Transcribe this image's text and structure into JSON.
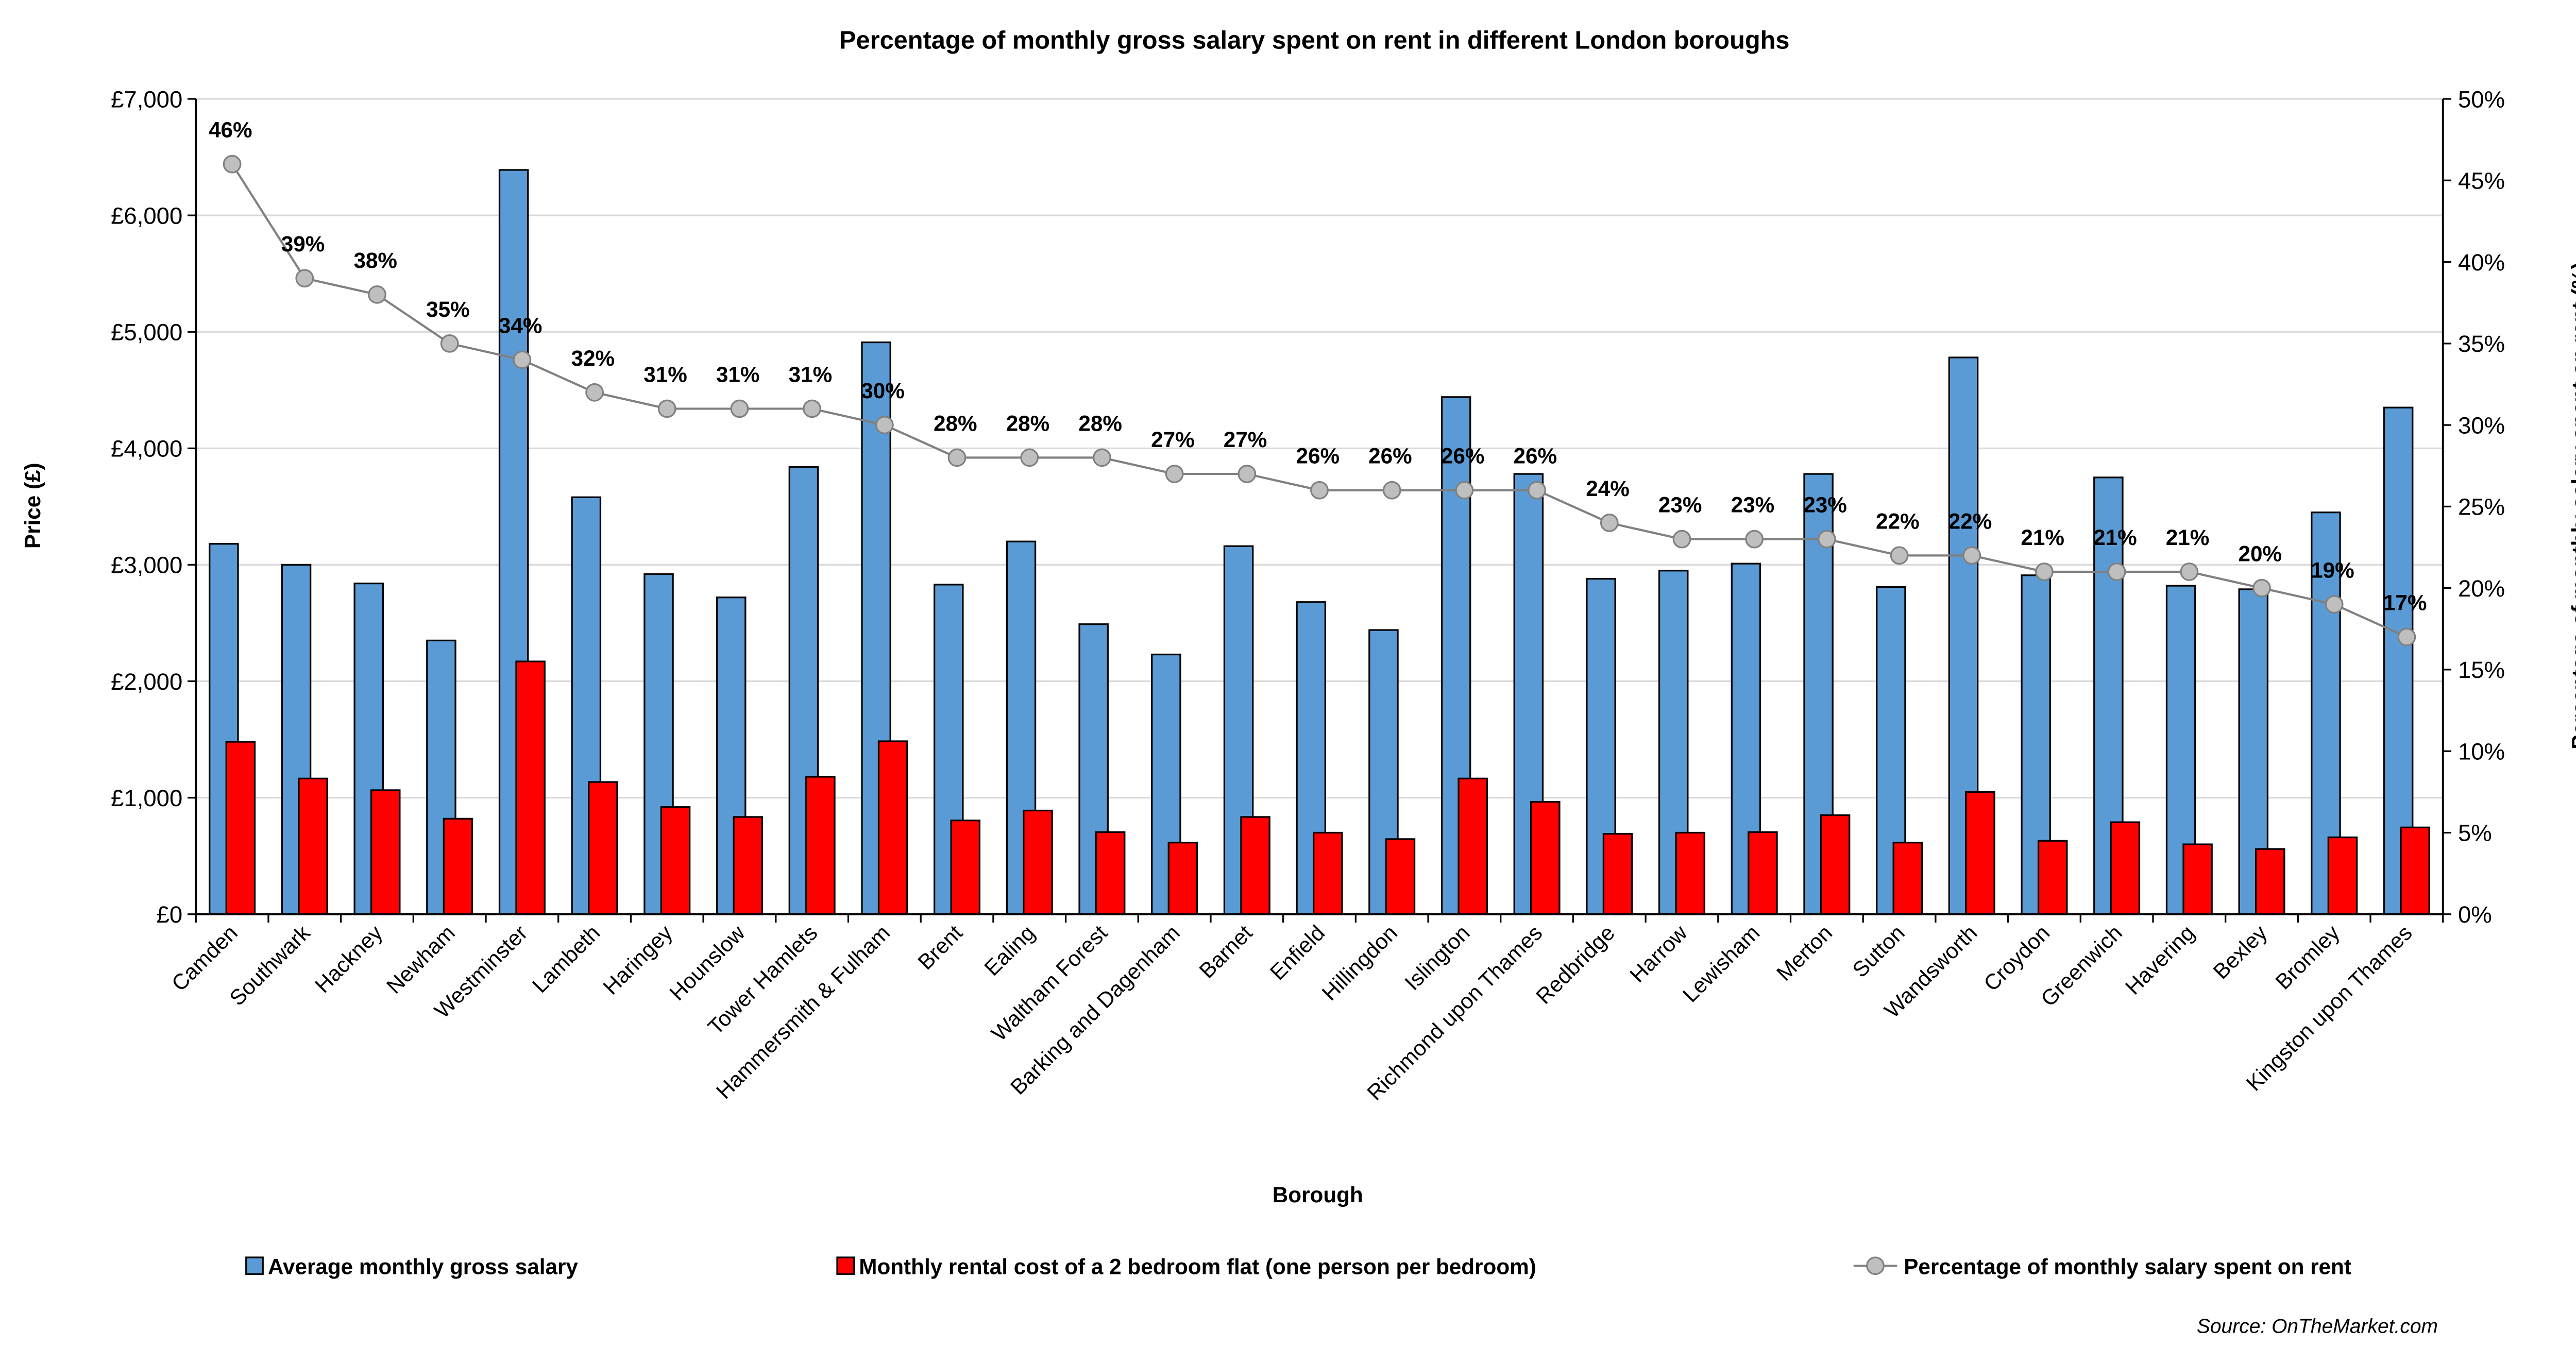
{
  "chart_data": {
    "type": "bar",
    "title": "Percentage of monthly gross salary spent on rent in different London boroughs",
    "xlabel": "Borough",
    "ylabel": "Price (£)",
    "y2label": "Percentage of monthly salary spent on rent (%)",
    "ylim": [
      0,
      7000
    ],
    "y2lim": [
      0,
      50
    ],
    "yticks": [
      "£0",
      "£1,000",
      "£2,000",
      "£3,000",
      "£4,000",
      "£5,000",
      "£6,000",
      "£7,000"
    ],
    "y2ticks": [
      "0%",
      "5%",
      "10%",
      "15%",
      "20%",
      "25%",
      "30%",
      "35%",
      "40%",
      "45%",
      "50%"
    ],
    "grid": true,
    "legend_position": "bottom",
    "source": "Source: OnTheMarket.com",
    "categories": [
      "Camden",
      "Southwark",
      "Hackney",
      "Newham",
      "Westminster",
      "Lambeth",
      "Haringey",
      "Hounslow",
      "Tower Hamlets",
      "Hammersmith & Fulham",
      "Brent",
      "Ealing",
      "Waltham Forest",
      "Barking and Dagenham",
      "Barnet",
      "Enfield",
      "Hillingdon",
      "Islington",
      "Richmond upon Thames",
      "Redbridge",
      "Harrow",
      "Lewisham",
      "Merton",
      "Sutton",
      "Wandsworth",
      "Croydon",
      "Greenwich",
      "Havering",
      "Bexley",
      "Bromley",
      "Kingston upon Thames"
    ],
    "series": [
      {
        "name": "Average monthly gross salary",
        "type": "bar",
        "axis": "left",
        "color": "#5b9bd5",
        "values": [
          3180,
          3000,
          2840,
          2350,
          6390,
          3580,
          2920,
          2720,
          3840,
          4910,
          2830,
          3200,
          2490,
          2230,
          3160,
          2680,
          2440,
          4440,
          3780,
          2880,
          2950,
          3010,
          3780,
          2810,
          4780,
          2910,
          3750,
          2820,
          2790,
          3450,
          4350
        ]
      },
      {
        "name": "Monthly rental cost of a 2 bedroom flat (one person per bedroom)",
        "type": "bar",
        "axis": "left",
        "color": "#ff0000",
        "values": [
          1480,
          1165,
          1065,
          820,
          2170,
          1135,
          920,
          835,
          1180,
          1485,
          805,
          890,
          705,
          615,
          835,
          700,
          645,
          1165,
          965,
          690,
          700,
          705,
          850,
          615,
          1050,
          630,
          790,
          600,
          560,
          660,
          745
        ]
      },
      {
        "name": "Percentage of monthly salary spent on rent",
        "type": "line",
        "axis": "right",
        "color": "#808080",
        "marker_color": "#bfbfbf",
        "values": [
          46,
          39,
          38,
          35,
          34,
          32,
          31,
          31,
          31,
          30,
          28,
          28,
          28,
          27,
          27,
          26,
          26,
          26,
          26,
          24,
          23,
          23,
          23,
          22,
          22,
          21,
          21,
          21,
          20,
          19,
          17
        ],
        "labels": [
          "46%",
          "39%",
          "38%",
          "35%",
          "34%",
          "32%",
          "31%",
          "31%",
          "31%",
          "30%",
          "28%",
          "28%",
          "28%",
          "27%",
          "27%",
          "26%",
          "26%",
          "26%",
          "26%",
          "24%",
          "23%",
          "23%",
          "23%",
          "22%",
          "22%",
          "21%",
          "21%",
          "21%",
          "20%",
          "19%",
          "17%"
        ]
      }
    ]
  }
}
